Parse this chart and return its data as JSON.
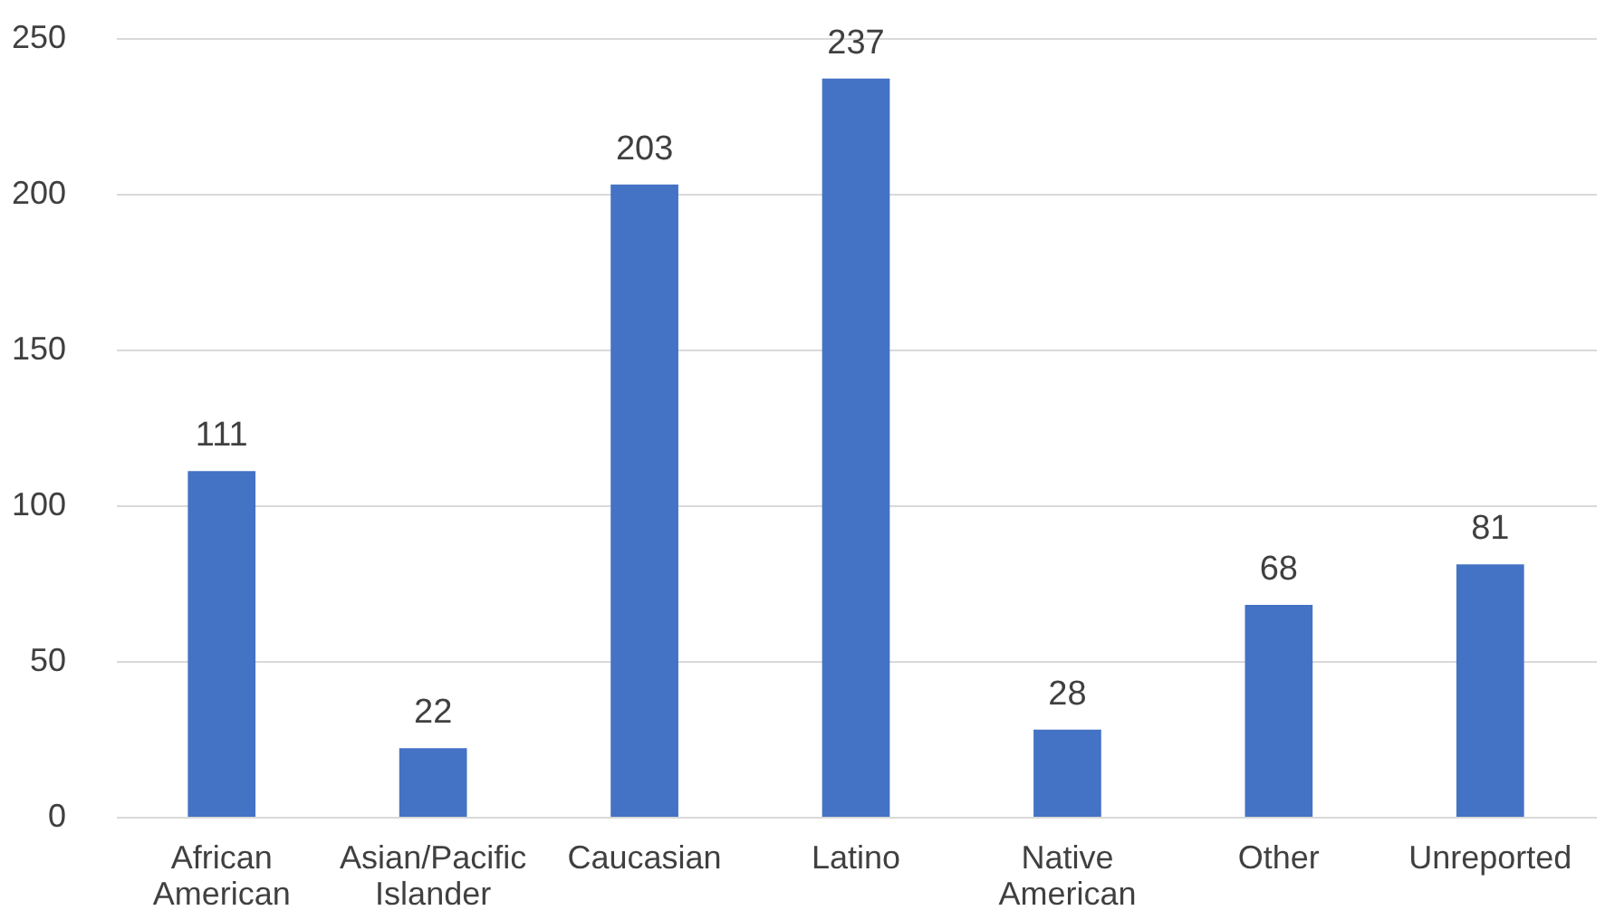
{
  "chart_data": {
    "type": "bar",
    "categories": [
      "African American",
      "Asian/Pacific Islander",
      "Caucasian",
      "Latino",
      "Native American",
      "Other",
      "Unreported"
    ],
    "values": [
      111,
      22,
      203,
      237,
      28,
      68,
      81
    ],
    "color": "#4472c4",
    "ylim": [
      0,
      250
    ],
    "yticks": [
      0,
      50,
      100,
      150,
      200,
      250
    ],
    "grid": "y",
    "data_labels": true
  }
}
